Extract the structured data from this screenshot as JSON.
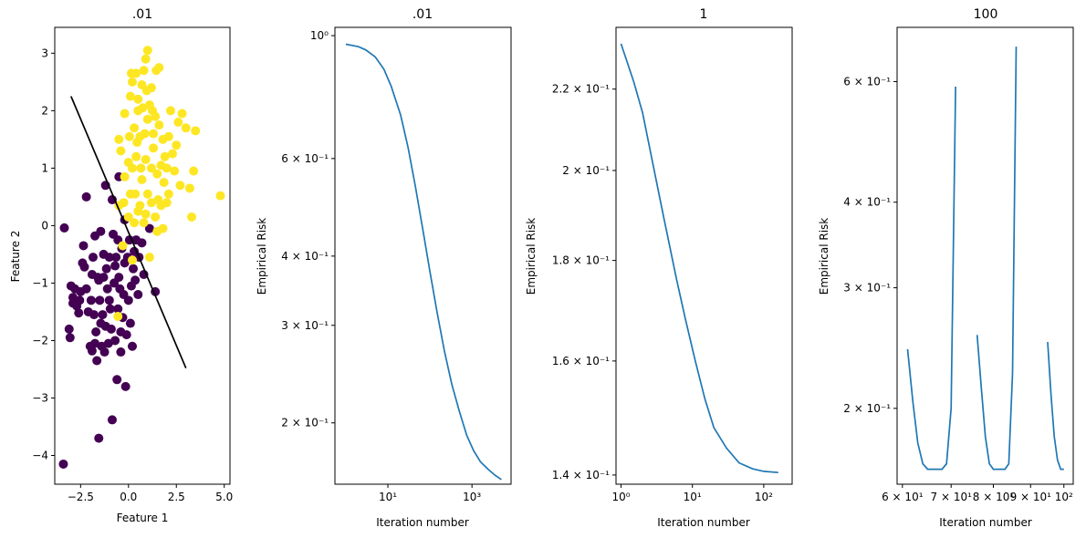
{
  "chart_data": [
    {
      "type": "scatter",
      "title": ".01",
      "xlabel": "Feature 1",
      "ylabel": "Feature 2",
      "xlim": [
        -3.85,
        5.3
      ],
      "ylim": [
        -4.5,
        3.45
      ],
      "xticks": [
        -2.5,
        0.0,
        2.5,
        5.0
      ],
      "xtick_labels": [
        "−2.5",
        "0.0",
        "2.5",
        "5.0"
      ],
      "yticks": [
        -4,
        -3,
        -2,
        -1,
        0,
        1,
        2,
        3
      ],
      "ytick_labels": [
        "−4",
        "−3",
        "−2",
        "−1",
        "0",
        "1",
        "2",
        "3"
      ],
      "colors": {
        "class0": "#440154",
        "class1": "#fde725",
        "boundary": "#000000"
      },
      "boundary_line": {
        "x": [
          -3.0,
          3.0
        ],
        "y": [
          2.25,
          -2.48
        ]
      },
      "series": [
        {
          "class": 0,
          "points": [
            [
              -3.35,
              -0.04
            ],
            [
              -3.4,
              -4.15
            ],
            [
              -3.1,
              -1.8
            ],
            [
              -3.05,
              -1.95
            ],
            [
              -3.0,
              -1.05
            ],
            [
              -2.9,
              -1.25
            ],
            [
              -2.8,
              -1.1
            ],
            [
              -2.7,
              -1.4
            ],
            [
              -2.6,
              -1.52
            ],
            [
              -2.5,
              -1.15
            ],
            [
              -2.4,
              -0.65
            ],
            [
              -2.3,
              -0.72
            ],
            [
              -2.2,
              -1.1
            ],
            [
              -2.1,
              -1.5
            ],
            [
              -2.0,
              -2.1
            ],
            [
              -1.95,
              -1.3
            ],
            [
              -1.9,
              -2.18
            ],
            [
              -1.85,
              -0.55
            ],
            [
              -1.8,
              -1.55
            ],
            [
              -1.75,
              -0.18
            ],
            [
              -1.7,
              -1.85
            ],
            [
              -1.65,
              -2.35
            ],
            [
              -1.6,
              -0.9
            ],
            [
              -1.55,
              -3.7
            ],
            [
              -1.5,
              -1.3
            ],
            [
              -1.45,
              -0.1
            ],
            [
              -1.4,
              -2.1
            ],
            [
              -1.35,
              -1.55
            ],
            [
              -1.3,
              -0.9
            ],
            [
              -1.25,
              -2.2
            ],
            [
              -1.2,
              -1.75
            ],
            [
              -1.15,
              -0.75
            ],
            [
              -1.1,
              -1.1
            ],
            [
              -1.05,
              -2.05
            ],
            [
              -1.0,
              -0.55
            ],
            [
              -0.95,
              -1.45
            ],
            [
              -0.9,
              -1.8
            ],
            [
              -0.85,
              -3.38
            ],
            [
              -0.8,
              -0.15
            ],
            [
              -0.75,
              -1.0
            ],
            [
              -0.7,
              -2.0
            ],
            [
              -0.65,
              -0.55
            ],
            [
              -0.6,
              -2.68
            ],
            [
              -0.55,
              -1.45
            ],
            [
              -0.5,
              -0.9
            ],
            [
              -0.45,
              -1.1
            ],
            [
              -0.4,
              -2.2
            ],
            [
              -0.35,
              -0.4
            ],
            [
              -0.3,
              -1.6
            ],
            [
              -0.25,
              -1.2
            ],
            [
              -0.2,
              -0.65
            ],
            [
              -0.15,
              -2.8
            ],
            [
              -0.1,
              -1.9
            ],
            [
              -0.05,
              -0.55
            ],
            [
              0.0,
              -1.3
            ],
            [
              0.05,
              -0.25
            ],
            [
              0.1,
              -1.7
            ],
            [
              0.15,
              -1.05
            ],
            [
              0.2,
              -2.1
            ],
            [
              0.25,
              -0.75
            ],
            [
              0.3,
              -0.45
            ],
            [
              0.4,
              -0.25
            ],
            [
              0.5,
              -1.2
            ],
            [
              0.55,
              -0.55
            ],
            [
              0.7,
              -0.3
            ],
            [
              0.8,
              -0.85
            ],
            [
              1.1,
              -0.05
            ],
            [
              1.4,
              -1.15
            ],
            [
              -2.2,
              0.5
            ],
            [
              -1.2,
              0.7
            ],
            [
              -0.85,
              0.45
            ],
            [
              -0.5,
              0.85
            ],
            [
              -0.2,
              0.1
            ],
            [
              -1.55,
              -0.95
            ],
            [
              -2.35,
              -0.35
            ],
            [
              -1.9,
              -0.85
            ],
            [
              -1.3,
              -0.5
            ],
            [
              -0.7,
              -0.7
            ],
            [
              -1.0,
              -1.3
            ],
            [
              -0.4,
              -1.85
            ],
            [
              -1.75,
              -2.05
            ],
            [
              -2.55,
              -1.3
            ],
            [
              -2.9,
              -1.35
            ],
            [
              -1.45,
              -1.7
            ],
            [
              -0.55,
              -0.25
            ],
            [
              0.35,
              -0.95
            ]
          ]
        },
        {
          "class": 1,
          "points": [
            [
              0.2,
              2.5
            ],
            [
              0.5,
              2.0
            ],
            [
              0.8,
              2.7
            ],
            [
              1.0,
              3.05
            ],
            [
              1.2,
              2.4
            ],
            [
              1.4,
              1.9
            ],
            [
              1.6,
              2.75
            ],
            [
              1.8,
              1.5
            ],
            [
              2.0,
              1.0
            ],
            [
              2.2,
              2.0
            ],
            [
              2.5,
              1.4
            ],
            [
              2.7,
              0.7
            ],
            [
              3.0,
              1.7
            ],
            [
              3.2,
              0.65
            ],
            [
              3.4,
              0.95
            ],
            [
              3.5,
              1.65
            ],
            [
              3.3,
              0.15
            ],
            [
              4.8,
              0.52
            ],
            [
              0.3,
              1.7
            ],
            [
              0.4,
              1.2
            ],
            [
              0.6,
              1.55
            ],
            [
              0.7,
              0.8
            ],
            [
              0.9,
              1.15
            ],
            [
              1.0,
              0.55
            ],
            [
              1.1,
              2.1
            ],
            [
              1.3,
              1.35
            ],
            [
              1.5,
              0.9
            ],
            [
              1.7,
              0.35
            ],
            [
              1.9,
              1.2
            ],
            [
              2.1,
              0.55
            ],
            [
              -0.4,
              1.3
            ],
            [
              -0.5,
              0.35
            ],
            [
              -0.2,
              0.85
            ],
            [
              0.0,
              0.15
            ],
            [
              0.1,
              0.55
            ],
            [
              0.2,
              1.0
            ],
            [
              0.5,
              0.25
            ],
            [
              0.8,
              0.05
            ],
            [
              1.2,
              0.4
            ],
            [
              1.5,
              -0.1
            ],
            [
              1.8,
              -0.05
            ],
            [
              -0.5,
              1.5
            ],
            [
              -0.2,
              1.95
            ],
            [
              0.1,
              2.25
            ],
            [
              0.4,
              2.65
            ],
            [
              0.7,
              2.45
            ],
            [
              0.9,
              2.9
            ],
            [
              1.3,
              1.6
            ],
            [
              1.6,
              1.75
            ],
            [
              2.3,
              1.25
            ],
            [
              2.6,
              1.8
            ],
            [
              0.6,
              0.35
            ],
            [
              -0.3,
              -0.35
            ],
            [
              1.1,
              -0.55
            ],
            [
              0.2,
              -0.6
            ],
            [
              -0.55,
              -1.58
            ],
            [
              0.3,
              0.05
            ],
            [
              1.4,
              0.15
            ],
            [
              2.0,
              0.4
            ],
            [
              0.85,
              1.6
            ],
            [
              1.2,
              1.0
            ],
            [
              0.0,
              1.1
            ],
            [
              0.5,
              2.2
            ],
            [
              0.75,
              2.05
            ],
            [
              1.45,
              2.7
            ],
            [
              0.15,
              2.65
            ],
            [
              0.95,
              2.35
            ],
            [
              1.7,
              1.05
            ],
            [
              2.1,
              1.55
            ],
            [
              2.8,
              1.95
            ],
            [
              0.35,
              0.55
            ],
            [
              0.65,
              1.0
            ],
            [
              1.0,
              1.85
            ],
            [
              1.25,
              2.0
            ],
            [
              0.45,
              1.45
            ],
            [
              1.55,
              0.45
            ],
            [
              2.4,
              0.95
            ],
            [
              0.05,
              1.55
            ],
            [
              -0.25,
              0.4
            ],
            [
              0.9,
              0.2
            ],
            [
              1.85,
              0.75
            ]
          ]
        }
      ]
    },
    {
      "type": "line",
      "title": ".01",
      "xlabel": "Iteration number",
      "ylabel": "Empirical Risk",
      "xscale": "log",
      "yscale": "log",
      "xlim": [
        0.55,
        8500
      ],
      "ylim": [
        0.155,
        1.035
      ],
      "xticks": [
        10,
        1000
      ],
      "xtick_labels": [
        "10¹",
        "10³"
      ],
      "yticks": [
        0.2,
        0.3,
        0.4,
        0.6,
        1.0
      ],
      "ytick_labels": [
        "2 × 10⁻¹",
        "3 × 10⁻¹",
        "4 × 10⁻¹",
        "6 × 10⁻¹",
        "10⁰"
      ],
      "x": [
        1,
        2,
        3,
        5,
        8,
        12,
        20,
        30,
        45,
        70,
        100,
        150,
        220,
        330,
        500,
        750,
        1100,
        1600,
        2400,
        3500,
        5000
      ],
      "y": [
        0.965,
        0.955,
        0.942,
        0.915,
        0.87,
        0.81,
        0.72,
        0.63,
        0.535,
        0.44,
        0.375,
        0.315,
        0.27,
        0.235,
        0.21,
        0.19,
        0.178,
        0.17,
        0.165,
        0.161,
        0.158
      ]
    },
    {
      "type": "line",
      "title": "1",
      "xlabel": "Iteration number",
      "ylabel": "Empirical Risk",
      "xscale": "log",
      "yscale": "log",
      "xlim": [
        0.85,
        250
      ],
      "ylim": [
        0.1385,
        0.2365
      ],
      "xticks": [
        1,
        10,
        100
      ],
      "xtick_labels": [
        "10⁰",
        "10¹",
        "10²"
      ],
      "yticks": [
        0.14,
        0.16,
        0.18,
        0.2,
        0.22
      ],
      "ytick_labels": [
        "1.4 × 10⁻¹",
        "1.6 × 10⁻¹",
        "1.8 × 10⁻¹",
        "2 × 10⁻¹",
        "2.2 × 10⁻¹"
      ],
      "x": [
        1,
        1.5,
        2,
        3,
        4,
        6,
        8,
        11,
        15,
        20,
        30,
        45,
        70,
        100,
        160
      ],
      "y": [
        0.232,
        0.222,
        0.214,
        0.199,
        0.189,
        0.176,
        0.168,
        0.16,
        0.153,
        0.148,
        0.1445,
        0.142,
        0.141,
        0.1406,
        0.1404
      ]
    },
    {
      "type": "line",
      "title": "100",
      "xlabel": "Iteration number",
      "ylabel": "Empirical Risk",
      "xscale": "log",
      "yscale": "log",
      "xlim": [
        59.0,
        103.0
      ],
      "ylim": [
        0.155,
        0.72
      ],
      "xticks": [
        60,
        70,
        80,
        90,
        100
      ],
      "xtick_labels": [
        "6 × 10¹",
        "7 × 10¹",
        "8 × 10¹",
        "9 × 10¹",
        "10²"
      ],
      "yticks": [
        0.2,
        0.3,
        0.4,
        0.6
      ],
      "ytick_labels": [
        "2 × 10⁻¹",
        "3 × 10⁻¹",
        "4 × 10⁻¹",
        "6 × 10⁻¹"
      ],
      "segments": [
        {
          "x": [
            61,
            62,
            63,
            64,
            65,
            66,
            67,
            68,
            69,
            70,
            71
          ],
          "y": [
            0.244,
            0.205,
            0.178,
            0.166,
            0.163,
            0.163,
            0.163,
            0.163,
            0.166,
            0.2,
            0.59
          ]
        },
        {
          "x": [
            76,
            77,
            78,
            79,
            80,
            81,
            82,
            83,
            84,
            85,
            86
          ],
          "y": [
            0.256,
            0.215,
            0.182,
            0.166,
            0.163,
            0.163,
            0.163,
            0.163,
            0.166,
            0.225,
            0.675
          ]
        },
        {
          "x": [
            95,
            96,
            97,
            98,
            99,
            100
          ],
          "y": [
            0.25,
            0.21,
            0.182,
            0.168,
            0.163,
            0.163
          ]
        }
      ]
    }
  ]
}
